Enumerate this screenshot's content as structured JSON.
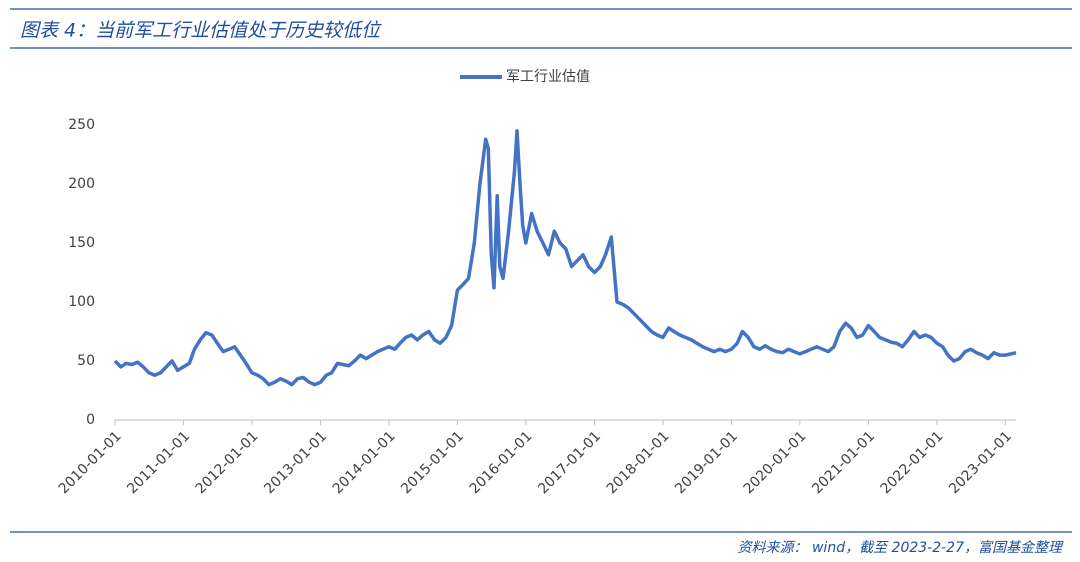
{
  "chart_data": {
    "type": "line",
    "title": "图表 4：当前军工行业估值处于历史较低位",
    "source": "资料来源： wind，截至 2023-2-27，富国基金整理",
    "x": [
      "2010-01-01",
      "2010-02-01",
      "2010-03-01",
      "2010-04-01",
      "2010-05-01",
      "2010-06-01",
      "2010-07-01",
      "2010-08-01",
      "2010-09-01",
      "2010-10-01",
      "2010-11-01",
      "2010-12-01",
      "2011-01-01",
      "2011-02-01",
      "2011-03-01",
      "2011-04-01",
      "2011-05-01",
      "2011-06-01",
      "2011-07-01",
      "2011-08-01",
      "2011-09-01",
      "2011-10-01",
      "2011-11-01",
      "2011-12-01",
      "2012-01-01",
      "2012-02-01",
      "2012-03-01",
      "2012-04-01",
      "2012-05-01",
      "2012-06-01",
      "2012-07-01",
      "2012-08-01",
      "2012-09-01",
      "2012-10-01",
      "2012-11-01",
      "2012-12-01",
      "2013-01-01",
      "2013-02-01",
      "2013-03-01",
      "2013-04-01",
      "2013-05-01",
      "2013-06-01",
      "2013-07-01",
      "2013-08-01",
      "2013-09-01",
      "2013-10-01",
      "2013-11-01",
      "2013-12-01",
      "2014-01-01",
      "2014-02-01",
      "2014-03-01",
      "2014-04-01",
      "2014-05-01",
      "2014-06-01",
      "2014-07-01",
      "2014-08-01",
      "2014-09-01",
      "2014-10-01",
      "2014-11-01",
      "2014-12-01",
      "2015-01-01",
      "2015-02-01",
      "2015-03-01",
      "2015-04-01",
      "2015-05-01",
      "2015-06-01",
      "2015-06-15",
      "2015-07-01",
      "2015-07-15",
      "2015-08-01",
      "2015-08-15",
      "2015-09-01",
      "2015-10-01",
      "2015-11-01",
      "2015-11-15",
      "2015-12-01",
      "2015-12-15",
      "2016-01-01",
      "2016-02-01",
      "2016-03-01",
      "2016-04-01",
      "2016-05-01",
      "2016-06-01",
      "2016-07-01",
      "2016-08-01",
      "2016-09-01",
      "2016-10-01",
      "2016-11-01",
      "2016-12-01",
      "2017-01-01",
      "2017-02-01",
      "2017-03-01",
      "2017-04-01",
      "2017-05-01",
      "2017-06-01",
      "2017-07-01",
      "2017-08-01",
      "2017-09-01",
      "2017-10-01",
      "2017-11-01",
      "2017-12-01",
      "2018-01-01",
      "2018-02-01",
      "2018-03-01",
      "2018-04-01",
      "2018-05-01",
      "2018-06-01",
      "2018-07-01",
      "2018-08-01",
      "2018-09-01",
      "2018-10-01",
      "2018-11-01",
      "2018-12-01",
      "2019-01-01",
      "2019-02-01",
      "2019-03-01",
      "2019-04-01",
      "2019-05-01",
      "2019-06-01",
      "2019-07-01",
      "2019-08-01",
      "2019-09-01",
      "2019-10-01",
      "2019-11-01",
      "2019-12-01",
      "2020-01-01",
      "2020-02-01",
      "2020-03-01",
      "2020-04-01",
      "2020-05-01",
      "2020-06-01",
      "2020-07-01",
      "2020-08-01",
      "2020-09-01",
      "2020-10-01",
      "2020-11-01",
      "2020-12-01",
      "2021-01-01",
      "2021-02-01",
      "2021-03-01",
      "2021-04-01",
      "2021-05-01",
      "2021-06-01",
      "2021-07-01",
      "2021-08-01",
      "2021-09-01",
      "2021-10-01",
      "2021-11-01",
      "2021-12-01",
      "2022-01-01",
      "2022-02-01",
      "2022-03-01",
      "2022-04-01",
      "2022-05-01",
      "2022-06-01",
      "2022-07-01",
      "2022-08-01",
      "2022-09-01",
      "2022-10-01",
      "2022-11-01",
      "2022-12-01",
      "2023-01-01",
      "2023-02-01",
      "2023-02-27"
    ],
    "series": [
      {
        "name": "军工行业估值",
        "color": "#4472c4",
        "values": [
          50,
          45,
          48,
          47,
          49,
          45,
          40,
          38,
          40,
          45,
          50,
          42,
          45,
          48,
          60,
          68,
          74,
          72,
          65,
          58,
          60,
          62,
          55,
          48,
          40,
          38,
          35,
          30,
          32,
          35,
          33,
          30,
          35,
          36,
          32,
          30,
          32,
          38,
          40,
          48,
          47,
          46,
          50,
          55,
          52,
          55,
          58,
          60,
          62,
          60,
          65,
          70,
          72,
          68,
          72,
          75,
          68,
          65,
          70,
          80,
          110,
          115,
          120,
          150,
          200,
          238,
          230,
          140,
          112,
          190,
          130,
          120,
          160,
          210,
          245,
          200,
          165,
          150,
          175,
          160,
          150,
          140,
          160,
          150,
          145,
          130,
          135,
          140,
          130,
          125,
          130,
          140,
          155,
          100,
          98,
          95,
          90,
          85,
          80,
          75,
          72,
          70,
          78,
          75,
          72,
          70,
          68,
          65,
          62,
          60,
          58,
          60,
          58,
          60,
          65,
          75,
          70,
          62,
          60,
          63,
          60,
          58,
          57,
          60,
          58,
          56,
          58,
          60,
          62,
          60,
          58,
          62,
          75,
          82,
          78,
          70,
          72,
          80,
          75,
          70,
          68,
          66,
          65,
          62,
          68,
          75,
          70,
          72,
          70,
          65,
          62,
          55,
          50,
          52,
          58,
          60,
          57,
          55,
          52,
          57,
          55,
          55,
          56,
          57
        ]
      }
    ],
    "xlim": [
      "2010-01-01",
      "2023-02-27"
    ],
    "xticks": [
      "2010-01-01",
      "2011-01-01",
      "2012-01-01",
      "2013-01-01",
      "2014-01-01",
      "2015-01-01",
      "2016-01-01",
      "2017-01-01",
      "2018-01-01",
      "2019-01-01",
      "2020-01-01",
      "2021-01-01",
      "2022-01-01",
      "2023-01-01"
    ],
    "ylim": [
      0,
      250
    ],
    "yticks": [
      0,
      50,
      100,
      150,
      200,
      250
    ],
    "grid": false,
    "legend": "top"
  }
}
